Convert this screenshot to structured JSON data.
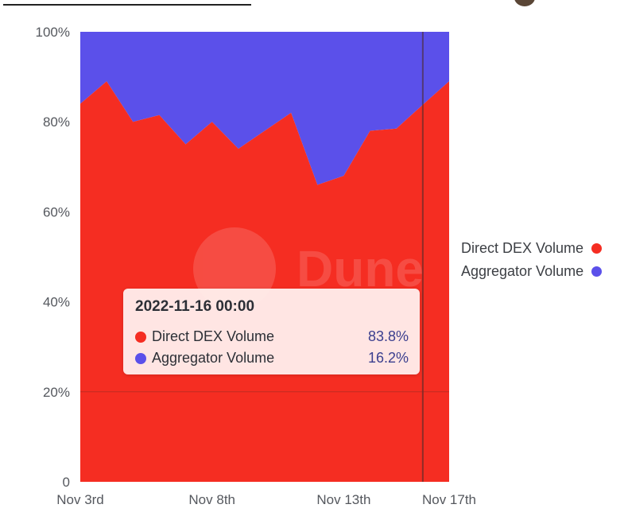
{
  "colors": {
    "direct": "#f52d22",
    "aggregator": "#5b50ea",
    "axis": "#55585e"
  },
  "legend": [
    {
      "label": "Direct DEX Volume",
      "color": "#f52d22"
    },
    {
      "label": "Aggregator Volume",
      "color": "#5b50ea"
    }
  ],
  "tooltip": {
    "title": "2022-11-16 00:00",
    "rows": [
      {
        "label": "Direct DEX Volume",
        "value": "83.8%",
        "color": "#f52d22"
      },
      {
        "label": "Aggregator Volume",
        "value": "16.2%",
        "color": "#5b50ea"
      }
    ]
  },
  "watermark": "Dune",
  "chart_data": {
    "type": "area",
    "stacked": true,
    "normalized": true,
    "x": [
      "2022-11-03",
      "2022-11-04",
      "2022-11-05",
      "2022-11-06",
      "2022-11-07",
      "2022-11-08",
      "2022-11-09",
      "2022-11-10",
      "2022-11-11",
      "2022-11-12",
      "2022-11-13",
      "2022-11-14",
      "2022-11-15",
      "2022-11-16",
      "2022-11-17"
    ],
    "x_tick_labels": [
      "Nov 3rd",
      "Nov 8th",
      "Nov 13th",
      "Nov 17th"
    ],
    "x_tick_indices": [
      0,
      5,
      10,
      14
    ],
    "y_tick_labels": [
      "0",
      "20%",
      "40%",
      "60%",
      "80%",
      "100%"
    ],
    "y_tick_values": [
      0,
      20,
      40,
      60,
      80,
      100
    ],
    "ylim": [
      0,
      100
    ],
    "series": [
      {
        "name": "Direct DEX Volume",
        "values": [
          84,
          89,
          80,
          81.5,
          75,
          80,
          74,
          78,
          82,
          66,
          68,
          78,
          78.5,
          83.8,
          89
        ]
      },
      {
        "name": "Aggregator Volume",
        "values": [
          16,
          11,
          20,
          18.5,
          25,
          20,
          26,
          22,
          18,
          34,
          32,
          22,
          21.5,
          16.2,
          11
        ]
      }
    ],
    "hover_index": 13,
    "legend_position": "right"
  }
}
